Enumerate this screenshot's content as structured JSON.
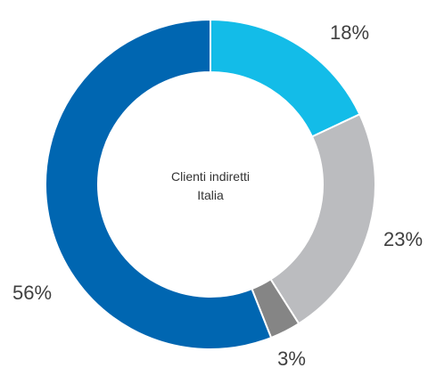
{
  "chart_data": {
    "type": "pie",
    "variant": "donut",
    "center_label": [
      "Clienti indiretti",
      "Italia"
    ],
    "slices": [
      {
        "label": "18%",
        "value": 18,
        "color": "#13bce8"
      },
      {
        "label": "23%",
        "value": 23,
        "color": "#bbbcbf"
      },
      {
        "label": "3%",
        "value": 3,
        "color": "#858585"
      },
      {
        "label": "56%",
        "value": 56,
        "color": "#0066b1"
      }
    ]
  }
}
